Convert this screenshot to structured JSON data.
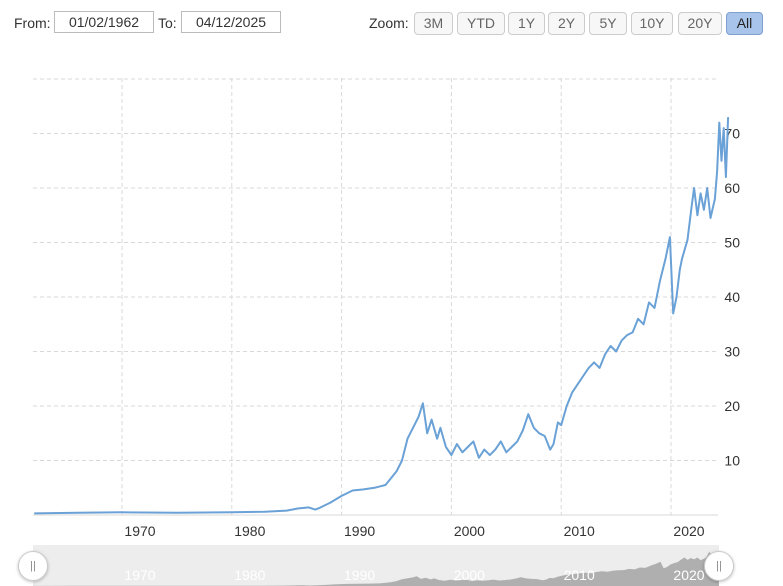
{
  "range": {
    "from_label": "From:",
    "from_value": "01/02/1962",
    "to_label": "To:",
    "to_value": "04/12/2025"
  },
  "zoom": {
    "label": "Zoom:",
    "buttons": [
      "3M",
      "YTD",
      "1Y",
      "2Y",
      "5Y",
      "10Y",
      "20Y",
      "All"
    ],
    "active": "All"
  },
  "navigator": {
    "handle_left": "||",
    "handle_right": "||"
  },
  "chart_data": {
    "type": "line",
    "title": "",
    "xlabel": "",
    "ylabel": "",
    "x_ticks": [
      "1970",
      "1980",
      "1990",
      "2000",
      "2010",
      "2020"
    ],
    "y_ticks": [
      "10",
      "20",
      "30",
      "40",
      "50",
      "60",
      "70"
    ],
    "xlim": [
      1962.0,
      2025.3
    ],
    "ylim": [
      0,
      80
    ],
    "y_axis_side": "right",
    "grid": "dashed",
    "line_color": "#6aa1d6",
    "navigator_fill": "#999999",
    "series": [
      {
        "x": [
          1962.0,
          1966.0,
          1970.0,
          1975.0,
          1980.0,
          1983.0,
          1985.0,
          1986.0,
          1987.0,
          1987.6,
          1988.0,
          1989.0,
          1990.0,
          1991.0,
          1992.0,
          1993.0,
          1994.0,
          1995.0,
          1995.5,
          1996.0,
          1996.5,
          1997.0,
          1997.4,
          1997.8,
          1998.2,
          1998.7,
          1999.0,
          1999.5,
          2000.0,
          2000.5,
          2001.0,
          2001.5,
          2002.0,
          2002.5,
          2003.0,
          2003.5,
          2004.0,
          2004.5,
          2005.0,
          2005.5,
          2006.0,
          2006.5,
          2007.0,
          2007.5,
          2008.0,
          2008.5,
          2009.0,
          2009.3,
          2009.7,
          2010.0,
          2010.5,
          2011.0,
          2011.5,
          2012.0,
          2012.5,
          2013.0,
          2013.5,
          2014.0,
          2014.5,
          2015.0,
          2015.5,
          2016.0,
          2016.5,
          2017.0,
          2017.5,
          2018.0,
          2018.5,
          2019.0,
          2019.5,
          2019.9,
          2020.2,
          2020.5,
          2020.8,
          2021.0,
          2021.5,
          2021.9,
          2022.1,
          2022.4,
          2022.7,
          2023.0,
          2023.3,
          2023.6,
          2024.0,
          2024.2,
          2024.4,
          2024.6,
          2024.8,
          2025.0,
          2025.2
        ],
        "y": [
          0.3,
          0.4,
          0.5,
          0.4,
          0.5,
          0.6,
          0.8,
          1.2,
          1.4,
          1.0,
          1.3,
          2.3,
          3.5,
          4.5,
          4.7,
          5.0,
          5.5,
          8.0,
          10.0,
          14.0,
          16.0,
          18.0,
          20.5,
          15.0,
          17.5,
          14.0,
          16.0,
          12.5,
          11.0,
          13.0,
          11.5,
          12.5,
          13.5,
          10.5,
          12.0,
          11.0,
          12.0,
          13.5,
          11.5,
          12.5,
          13.5,
          15.5,
          18.5,
          16.0,
          15.0,
          14.5,
          12.0,
          13.0,
          17.0,
          16.5,
          20.0,
          22.5,
          24.0,
          25.5,
          27.0,
          28.0,
          27.0,
          29.5,
          31.0,
          30.0,
          32.0,
          33.0,
          33.5,
          36.0,
          35.0,
          39.0,
          38.0,
          43.0,
          47.0,
          51.0,
          37.0,
          40.0,
          45.0,
          47.0,
          50.5,
          57.0,
          60.0,
          55.0,
          59.0,
          56.0,
          60.0,
          54.5,
          58.0,
          63.0,
          72.0,
          65.0,
          71.0,
          62.0,
          73.0
        ]
      }
    ]
  }
}
